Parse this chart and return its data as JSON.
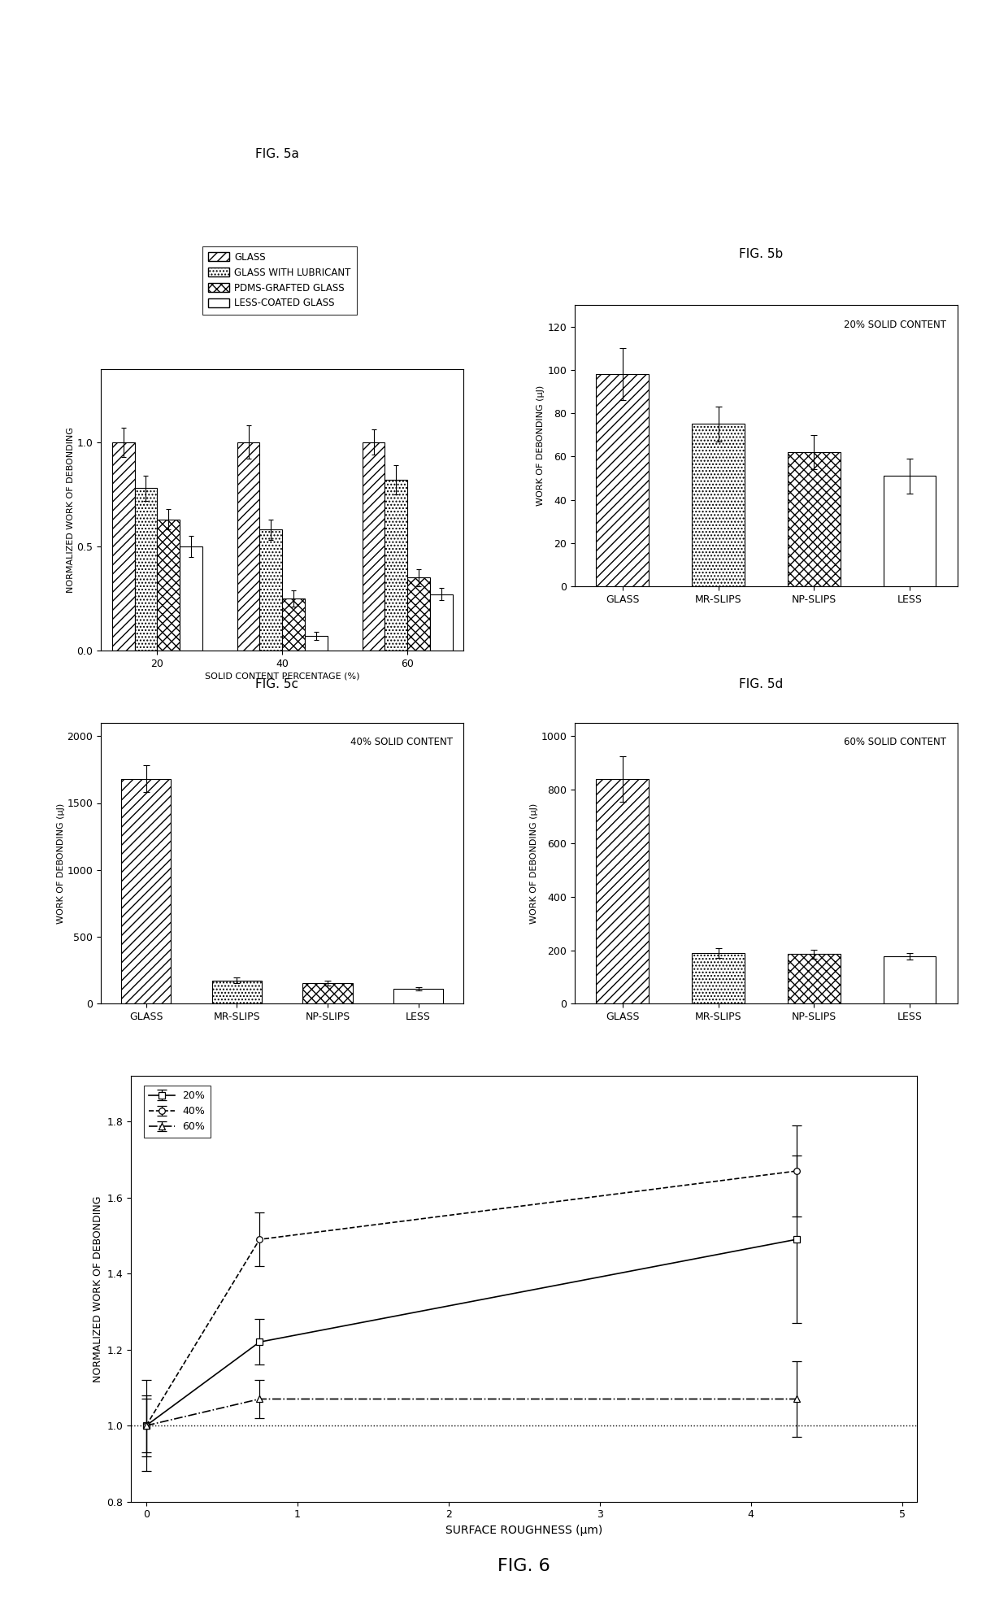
{
  "fig5a": {
    "title": "FIG. 5a",
    "xlabel": "SOLID CONTENT PERCENTAGE (%)",
    "ylabel": "NORMALIZED WORK OF DEBONDING",
    "categories": [
      20,
      40,
      60
    ],
    "series_labels": [
      "GLASS",
      "GLASS WITH LUBRICANT",
      "PDMS-GRAFTED GLASS",
      "LESS-COATED GLASS"
    ],
    "values": [
      [
        1.0,
        1.0,
        1.0
      ],
      [
        0.78,
        0.58,
        0.82
      ],
      [
        0.63,
        0.25,
        0.35
      ],
      [
        0.5,
        0.07,
        0.27
      ]
    ],
    "errors": [
      [
        0.07,
        0.08,
        0.06
      ],
      [
        0.06,
        0.05,
        0.07
      ],
      [
        0.05,
        0.04,
        0.04
      ],
      [
        0.05,
        0.02,
        0.03
      ]
    ],
    "ylim": [
      0.0,
      1.35
    ],
    "yticks": [
      0.0,
      0.5,
      1.0
    ],
    "xticks": [
      20,
      40,
      60
    ]
  },
  "fig5b": {
    "title": "FIG. 5b",
    "ylabel": "WORK OF DEBONDING (μJ)",
    "annotation": "20% SOLID CONTENT",
    "categories": [
      "GLASS",
      "MR-SLIPS",
      "NP-SLIPS",
      "LESS"
    ],
    "values": [
      98,
      75,
      62,
      51
    ],
    "errors": [
      12,
      8,
      8,
      8
    ],
    "ylim": [
      0,
      130
    ],
    "yticks": [
      0,
      20,
      40,
      60,
      80,
      100,
      120
    ]
  },
  "fig5c": {
    "title": "FIG. 5c",
    "ylabel": "WORK OF DEBONDING (μJ)",
    "annotation": "40% SOLID CONTENT",
    "categories": [
      "GLASS",
      "MR-SLIPS",
      "NP-SLIPS",
      "LESS"
    ],
    "values": [
      1680,
      175,
      155,
      110
    ],
    "errors": [
      100,
      20,
      18,
      12
    ],
    "ylim": [
      0,
      2100
    ],
    "yticks": [
      0,
      500,
      1000,
      1500,
      2000
    ]
  },
  "fig5d": {
    "title": "FIG. 5d",
    "ylabel": "WORK OF DEBONDING (μJ)",
    "annotation": "60% SOLID CONTENT",
    "categories": [
      "GLASS",
      "MR-SLIPS",
      "NP-SLIPS",
      "LESS"
    ],
    "values": [
      840,
      190,
      185,
      178
    ],
    "errors": [
      85,
      18,
      18,
      12
    ],
    "ylim": [
      0,
      1050
    ],
    "yticks": [
      0,
      200,
      400,
      600,
      800,
      1000
    ]
  },
  "fig6": {
    "title": "FIG. 6",
    "xlabel": "SURFACE ROUGHNESS (μm)",
    "ylabel": "NORMALIZED WORK OF DEBONDING",
    "series_20": {
      "x": [
        0.0,
        0.75,
        4.3
      ],
      "y": [
        1.0,
        1.22,
        1.49
      ],
      "yerr": [
        0.12,
        0.06,
        0.22
      ],
      "label": "20%",
      "marker": "s",
      "linestyle": "-"
    },
    "series_40": {
      "x": [
        0.0,
        0.75,
        4.3
      ],
      "y": [
        1.0,
        1.49,
        1.67
      ],
      "yerr": [
        0.08,
        0.07,
        0.12
      ],
      "label": "40%",
      "marker": "o",
      "linestyle": "--"
    },
    "series_60": {
      "x": [
        0.0,
        0.75,
        4.3
      ],
      "y": [
        1.0,
        1.07,
        1.07
      ],
      "yerr": [
        0.07,
        0.05,
        0.1
      ],
      "label": "60%",
      "marker": "^",
      "linestyle": "-."
    },
    "hline_y": 1.0,
    "xlim": [
      -0.1,
      5.1
    ],
    "ylim": [
      0.8,
      1.92
    ],
    "yticks": [
      0.8,
      1.0,
      1.2,
      1.4,
      1.6,
      1.8
    ],
    "xticks": [
      0,
      1,
      2,
      3,
      4,
      5
    ]
  },
  "background_color": "#ffffff"
}
